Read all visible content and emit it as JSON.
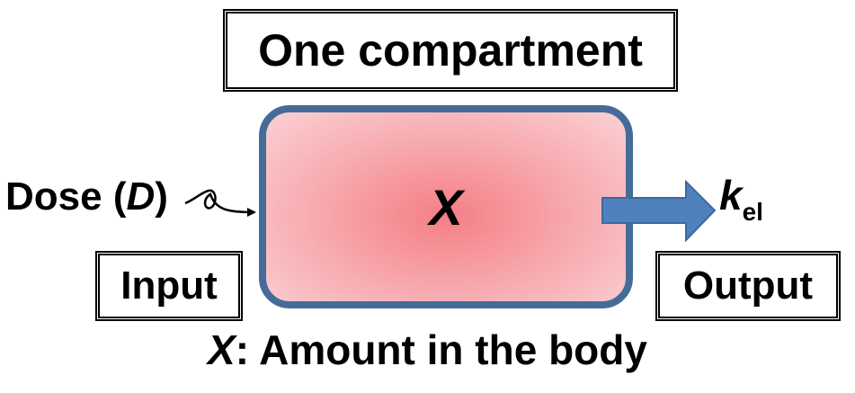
{
  "title": "One compartment",
  "compartment": {
    "variable": "X"
  },
  "input": {
    "box_label": "Input",
    "dose_text": "Dose (",
    "dose_symbol": "D",
    "dose_close": ")"
  },
  "output": {
    "box_label": "Output",
    "rate_symbol": "k",
    "rate_subscript": "el"
  },
  "caption": {
    "variable": "X",
    "text": ": Amount in the body"
  },
  "colors": {
    "compartment_border": "#456c98",
    "compartment_fill": "#f47f86",
    "output_arrow": "#4f81bd"
  }
}
